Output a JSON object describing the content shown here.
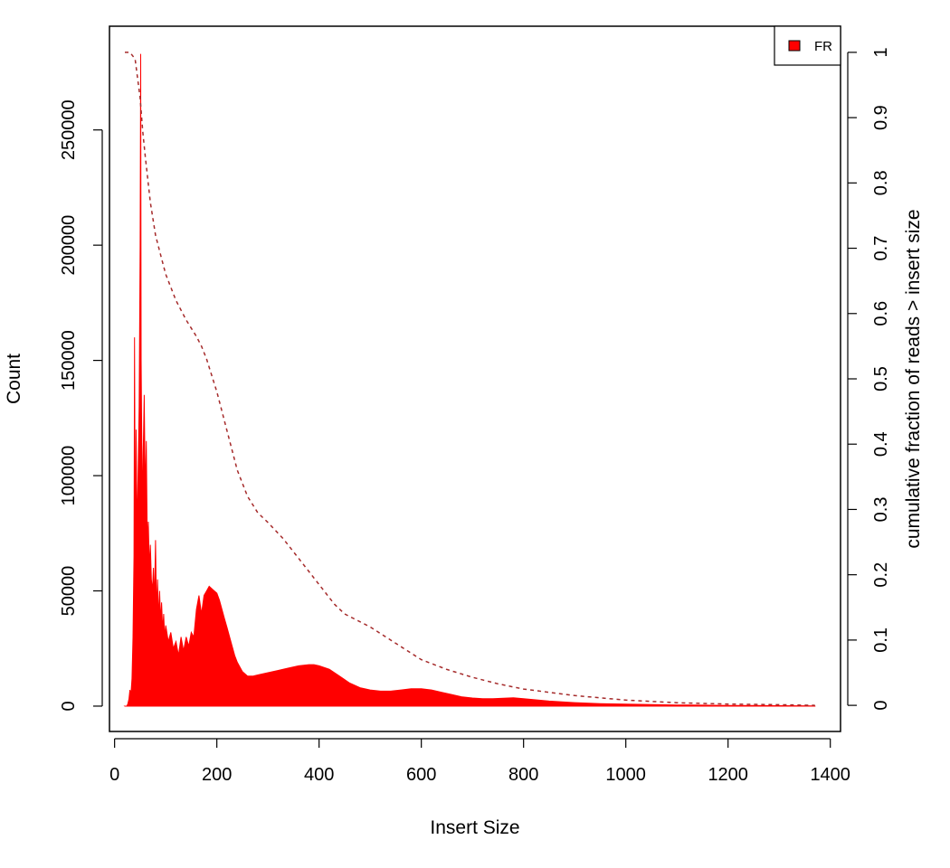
{
  "chart_data": {
    "type": "area",
    "xlabel": "Insert Size",
    "ylabel": "Count",
    "y2label": "cumulative fraction of reads > insert size",
    "xlim": [
      -10,
      1420
    ],
    "ylim": [
      -11000,
      295000
    ],
    "y2lim": [
      -0.04,
      1.04
    ],
    "x_ticks": [
      0,
      200,
      400,
      600,
      800,
      1000,
      1200,
      1400
    ],
    "x_tick_labels": [
      "0",
      "200",
      "400",
      "600",
      "800",
      "1000",
      "1200",
      "1400"
    ],
    "y_ticks": [
      0,
      50000,
      100000,
      150000,
      200000,
      250000
    ],
    "y_tick_labels": [
      "0",
      "50000",
      "100000",
      "150000",
      "200000",
      "250000"
    ],
    "y2_ticks": [
      0,
      0.1,
      0.2,
      0.3,
      0.4,
      0.5,
      0.6,
      0.7,
      0.8,
      0.9,
      1
    ],
    "y2_tick_labels": [
      "0",
      "0.1",
      "0.2",
      "0.3",
      "0.4",
      "0.5",
      "0.6",
      "0.7",
      "0.8",
      "0.9",
      "1"
    ],
    "grid": false,
    "legend": {
      "position": "top-right",
      "entries": [
        {
          "label": "FR",
          "color": "#ff0000"
        }
      ]
    },
    "series": [
      {
        "name": "FR",
        "type": "area",
        "axis": "left",
        "color": "#ff0000",
        "x": [
          20,
          22,
          24,
          26,
          28,
          30,
          32,
          34,
          36,
          38,
          39,
          40,
          41,
          42,
          44,
          46,
          48,
          50,
          51,
          52,
          53,
          54,
          55,
          56,
          58,
          60,
          62,
          64,
          66,
          68,
          70,
          72,
          74,
          76,
          78,
          80,
          82,
          84,
          86,
          88,
          90,
          92,
          94,
          96,
          98,
          100,
          105,
          110,
          115,
          120,
          125,
          130,
          135,
          140,
          145,
          150,
          155,
          160,
          165,
          170,
          175,
          180,
          185,
          190,
          195,
          200,
          205,
          210,
          215,
          220,
          225,
          230,
          235,
          240,
          250,
          260,
          270,
          280,
          290,
          300,
          320,
          340,
          360,
          380,
          390,
          400,
          420,
          440,
          460,
          480,
          500,
          520,
          540,
          560,
          580,
          600,
          620,
          640,
          660,
          680,
          700,
          720,
          740,
          760,
          780,
          800,
          850,
          900,
          950,
          1000,
          1050,
          1100,
          1150,
          1200,
          1250,
          1300,
          1350,
          1370
        ],
        "values": [
          0,
          0,
          0,
          1000,
          3000,
          7000,
          5000,
          12000,
          30000,
          65000,
          160000,
          90000,
          60000,
          120000,
          75000,
          100000,
          130000,
          200000,
          283000,
          150000,
          120000,
          100000,
          80000,
          110000,
          135000,
          90000,
          115000,
          70000,
          80000,
          60000,
          70000,
          55000,
          50000,
          60000,
          45000,
          72000,
          40000,
          55000,
          38000,
          50000,
          37000,
          45000,
          33000,
          40000,
          30000,
          35000,
          28000,
          32000,
          25000,
          28000,
          22000,
          30000,
          24000,
          30000,
          26000,
          32000,
          30000,
          42000,
          48000,
          40000,
          48000,
          50000,
          52000,
          51000,
          50000,
          49000,
          46000,
          42000,
          38000,
          34000,
          30000,
          26000,
          22000,
          19000,
          15000,
          13000,
          13000,
          13500,
          14000,
          14500,
          15500,
          16500,
          17500,
          18000,
          18000,
          17500,
          16000,
          13000,
          10000,
          8000,
          7000,
          6500,
          6500,
          7000,
          7500,
          7500,
          7000,
          6000,
          5000,
          4000,
          3500,
          3200,
          3200,
          3400,
          3600,
          3200,
          2200,
          1500,
          1100,
          900,
          700,
          500,
          400,
          300,
          250,
          200,
          150,
          100
        ]
      },
      {
        "name": "cumulative fraction",
        "type": "line",
        "axis": "right",
        "style": "dashed",
        "color": "#a52a2a",
        "x": [
          20,
          30,
          40,
          45,
          50,
          55,
          60,
          70,
          80,
          90,
          100,
          120,
          140,
          160,
          170,
          180,
          200,
          220,
          240,
          260,
          280,
          300,
          330,
          360,
          400,
          430,
          450,
          500,
          550,
          600,
          650,
          700,
          750,
          800,
          900,
          1000,
          1100,
          1200,
          1300,
          1370
        ],
        "values": [
          1.0,
          1.0,
          0.99,
          0.96,
          0.93,
          0.88,
          0.84,
          0.77,
          0.72,
          0.69,
          0.66,
          0.62,
          0.59,
          0.565,
          0.55,
          0.53,
          0.48,
          0.42,
          0.36,
          0.32,
          0.295,
          0.28,
          0.255,
          0.225,
          0.185,
          0.155,
          0.14,
          0.12,
          0.095,
          0.07,
          0.055,
          0.043,
          0.033,
          0.025,
          0.015,
          0.008,
          0.004,
          0.002,
          0.001,
          0.0
        ]
      }
    ]
  }
}
